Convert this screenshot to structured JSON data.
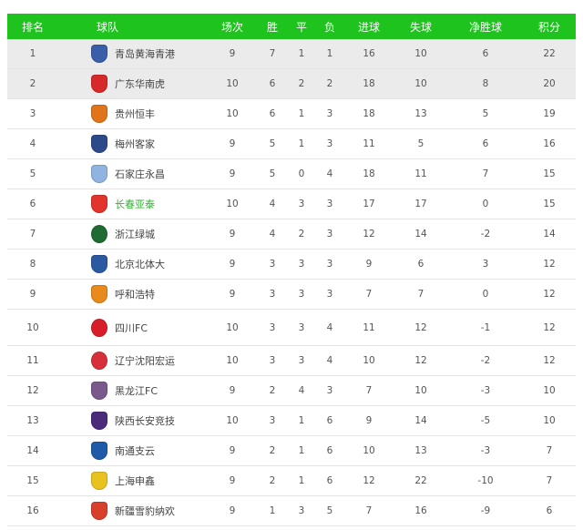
{
  "header": [
    "排名",
    "球队",
    "场次",
    "胜",
    "平",
    "负",
    "进球",
    "失球",
    "净胜球",
    "积分"
  ],
  "colors": {
    "header_bg": "#1ec31e",
    "highlight_row": "#ebebeb",
    "highlight_team": "#2fb52f"
  },
  "rows": [
    {
      "rank": "1",
      "team": "青岛黄海青港",
      "logo": "qingdao-logo",
      "logo_color": "#3a5ea8",
      "played": "9",
      "w": "7",
      "d": "1",
      "l": "1",
      "gf": "16",
      "ga": "10",
      "gd": "6",
      "pts": "22",
      "highlighted": true
    },
    {
      "rank": "2",
      "team": "广东华南虎",
      "logo": "guangdong-logo",
      "logo_color": "#d62a2a",
      "played": "10",
      "w": "6",
      "d": "2",
      "l": "2",
      "gf": "18",
      "ga": "10",
      "gd": "8",
      "pts": "20",
      "highlighted": true
    },
    {
      "rank": "3",
      "team": "贵州恒丰",
      "logo": "guizhou-logo",
      "logo_color": "#e0741a",
      "played": "10",
      "w": "6",
      "d": "1",
      "l": "3",
      "gf": "18",
      "ga": "13",
      "gd": "5",
      "pts": "19"
    },
    {
      "rank": "4",
      "team": "梅州客家",
      "logo": "meizhou-logo",
      "logo_color": "#2c4a8a",
      "played": "9",
      "w": "5",
      "d": "1",
      "l": "3",
      "gf": "11",
      "ga": "5",
      "gd": "6",
      "pts": "16"
    },
    {
      "rank": "5",
      "team": "石家庄永昌",
      "logo": "shijiazhuang-logo",
      "logo_color": "#8fb4e0",
      "played": "9",
      "w": "5",
      "d": "0",
      "l": "4",
      "gf": "18",
      "ga": "11",
      "gd": "7",
      "pts": "15"
    },
    {
      "rank": "6",
      "team": "长春亚泰",
      "logo": "changchun-logo",
      "logo_color": "#e0342c",
      "played": "10",
      "w": "4",
      "d": "3",
      "l": "3",
      "gf": "17",
      "ga": "17",
      "gd": "0",
      "pts": "15",
      "green": true
    },
    {
      "rank": "7",
      "team": "浙江绿城",
      "logo": "zhejiang-logo",
      "logo_color": "#1f6b32",
      "round": true,
      "played": "9",
      "w": "4",
      "d": "2",
      "l": "3",
      "gf": "12",
      "ga": "14",
      "gd": "-2",
      "pts": "14"
    },
    {
      "rank": "8",
      "team": "北京北体大",
      "logo": "beijing-logo",
      "logo_color": "#2c5aa0",
      "played": "9",
      "w": "3",
      "d": "3",
      "l": "3",
      "gf": "9",
      "ga": "6",
      "gd": "3",
      "pts": "12"
    },
    {
      "rank": "9",
      "team": "呼和浩特",
      "logo": "huhehaote-logo",
      "logo_color": "#e88a1c",
      "played": "9",
      "w": "3",
      "d": "3",
      "l": "3",
      "gf": "7",
      "ga": "7",
      "gd": "0",
      "pts": "12"
    },
    {
      "rank": "10",
      "team": "四川FC",
      "logo": "sichuan-logo",
      "logo_color": "#d81e28",
      "round": true,
      "played": "10",
      "w": "3",
      "d": "3",
      "l": "4",
      "gf": "11",
      "ga": "12",
      "gd": "-1",
      "pts": "12",
      "tall": true
    },
    {
      "rank": "11",
      "team": "辽宁沈阳宏运",
      "logo": "liaoning-logo",
      "logo_color": "#d8303a",
      "round": true,
      "played": "10",
      "w": "3",
      "d": "3",
      "l": "4",
      "gf": "10",
      "ga": "12",
      "gd": "-2",
      "pts": "12"
    },
    {
      "rank": "12",
      "team": "黑龙江FC",
      "logo": "heilongjiang-logo",
      "logo_color": "#7a5a8c",
      "played": "9",
      "w": "2",
      "d": "4",
      "l": "3",
      "gf": "7",
      "ga": "10",
      "gd": "-3",
      "pts": "10"
    },
    {
      "rank": "13",
      "team": "陕西长安竞技",
      "logo": "shaanxi-logo",
      "logo_color": "#4a2c7a",
      "played": "10",
      "w": "3",
      "d": "1",
      "l": "6",
      "gf": "9",
      "ga": "14",
      "gd": "-5",
      "pts": "10"
    },
    {
      "rank": "14",
      "team": "南通支云",
      "logo": "nantong-logo",
      "logo_color": "#1e5aa8",
      "played": "9",
      "w": "2",
      "d": "1",
      "l": "6",
      "gf": "10",
      "ga": "13",
      "gd": "-3",
      "pts": "7"
    },
    {
      "rank": "15",
      "team": "上海申鑫",
      "logo": "shanghai-logo",
      "logo_color": "#e8c21e",
      "played": "9",
      "w": "2",
      "d": "1",
      "l": "6",
      "gf": "12",
      "ga": "22",
      "gd": "-10",
      "pts": "7"
    },
    {
      "rank": "16",
      "team": "新疆雪豹纳欢",
      "logo": "xinjiang-logo",
      "logo_color": "#d8402c",
      "played": "9",
      "w": "1",
      "d": "3",
      "l": "5",
      "gf": "7",
      "ga": "16",
      "gd": "-9",
      "pts": "6"
    }
  ]
}
